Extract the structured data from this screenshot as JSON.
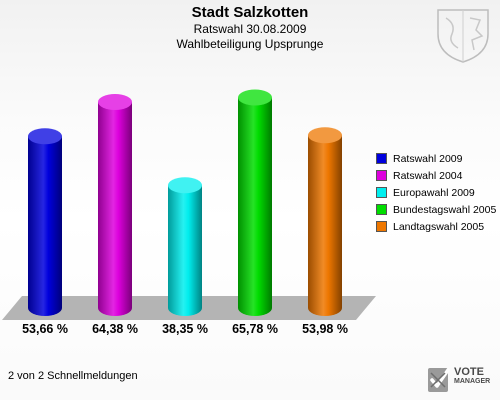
{
  "header": {
    "title": "Stadt Salzkotten",
    "subtitle": "Ratswahl 30.08.2009",
    "subsubtitle": "Wahlbeteiligung Upsprunge"
  },
  "chart_data": {
    "type": "bar",
    "title": "Stadt Salzkotten",
    "subtitle": "Ratswahl 30.08.2009 / Wahlbeteiligung Upsprunge",
    "categories": [
      "Ratswahl 2009",
      "Ratswahl 2004",
      "Europawahl 2009",
      "Bundestagswahl 2005",
      "Landtagswahl 2005"
    ],
    "values": [
      53.66,
      64.38,
      38.35,
      65.78,
      53.98
    ],
    "value_labels": [
      "53,66 %",
      "64,38 %",
      "38,35 %",
      "65,78 %",
      "53,98 %"
    ],
    "colors": [
      "#0000dd",
      "#dd00dd",
      "#00eeee",
      "#00dd00",
      "#ee7700"
    ],
    "legend_position": "right",
    "grid": false,
    "ylim": [
      0,
      70
    ]
  },
  "footer": {
    "text": "2 von 2 Schnellmeldungen"
  },
  "logo": {
    "line1": "VOTE",
    "line2": "MANAGER"
  },
  "icons": {
    "crest": "coat-of-arms-icon",
    "logo": "vote-manager-icon"
  }
}
